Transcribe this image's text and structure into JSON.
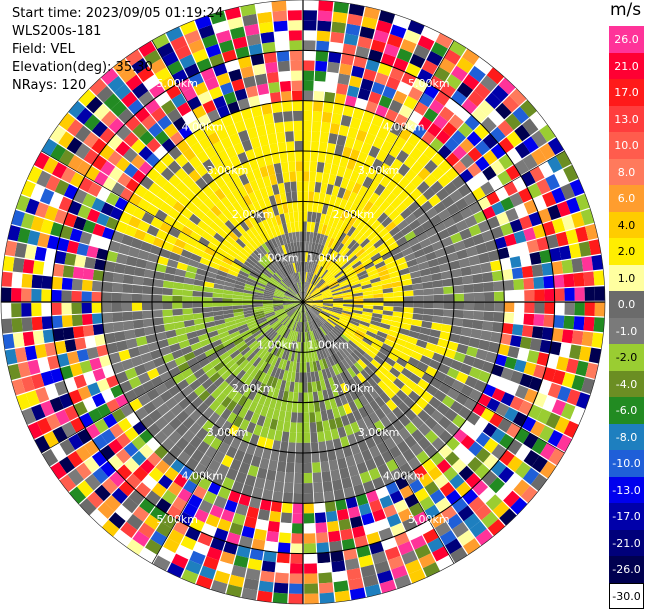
{
  "header": {
    "start_time": "Start time: 2023/09/05 01:19:24",
    "station": "WLS200s-181",
    "field": "Field: VEL",
    "elevation": "Elevation(deg): 35.30",
    "nrays": "NRays: 120"
  },
  "colorbar": {
    "unit": "m/s",
    "levels": [
      {
        "label": "26.0",
        "color": "#ff3399"
      },
      {
        "label": "21.0",
        "color": "#ff0033"
      },
      {
        "label": "17.0",
        "color": "#ff1a1a"
      },
      {
        "label": "13.0",
        "color": "#ff3d3d"
      },
      {
        "label": "10.0",
        "color": "#ff5c4d"
      },
      {
        "label": "8.0",
        "color": "#ff7a5c"
      },
      {
        "label": "6.0",
        "color": "#ff9d2e"
      },
      {
        "label": "4.0",
        "color": "#ffcc00"
      },
      {
        "label": "2.0",
        "color": "#ffee00"
      },
      {
        "label": "1.0",
        "color": "#ffffa0"
      },
      {
        "label": "0.0",
        "color": "#6b6b6b"
      },
      {
        "label": "-1.0",
        "color": "#7a7a7a"
      },
      {
        "label": "-2.0",
        "color": "#9acd32"
      },
      {
        "label": "-4.0",
        "color": "#6b8e23"
      },
      {
        "label": "-6.0",
        "color": "#228b22"
      },
      {
        "label": "-8.0",
        "color": "#1e7fbf"
      },
      {
        "label": "-10.0",
        "color": "#1f5fd8"
      },
      {
        "label": "-13.0",
        "color": "#0000ee"
      },
      {
        "label": "-17.0",
        "color": "#0000aa"
      },
      {
        "label": "-21.0",
        "color": "#00007a"
      },
      {
        "label": "-26.0",
        "color": "#000050"
      },
      {
        "label": "-30.0",
        "color": "#ffffff"
      }
    ]
  },
  "chart_data": {
    "type": "heatmap",
    "projection": "polar PPI",
    "field": "VEL",
    "nrays": 120,
    "elevation_deg": 35.3,
    "range_ring_labels": [
      "1.00km",
      "2.00km",
      "3.00km",
      "4.00km",
      "5.00km"
    ],
    "range_rings_km": [
      1.0,
      2.0,
      3.0,
      4.0,
      5.0
    ],
    "max_range_km": 6.0,
    "velocity_levels_ms": [
      26.0,
      21.0,
      17.0,
      13.0,
      10.0,
      8.0,
      6.0,
      4.0,
      2.0,
      1.0,
      0.0,
      -1.0,
      -2.0,
      -4.0,
      -6.0,
      -8.0,
      -10.0,
      -13.0,
      -17.0,
      -21.0,
      -26.0,
      -30.0
    ],
    "pattern_note_km": {
      "inner_clean_range_km": 4.0,
      "north_receding_yellow_range_km": [
        1.5,
        4.0
      ],
      "east_receding_yellow_range_km": [
        0.0,
        2.2
      ],
      "southwest_approaching_green_range_km": [
        0.0,
        2.8
      ],
      "noise_beyond_km": 4.0
    }
  }
}
